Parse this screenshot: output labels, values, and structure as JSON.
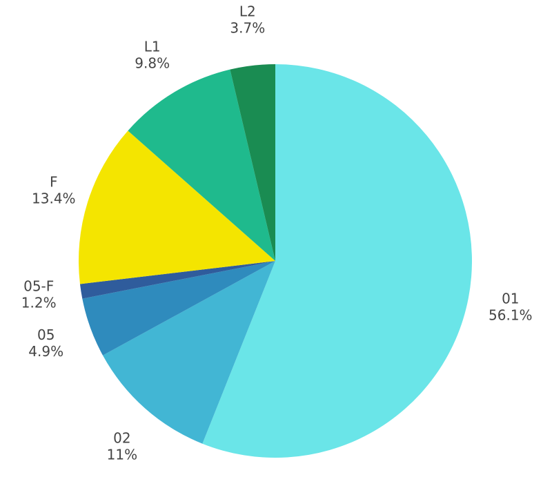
{
  "chart_data": {
    "type": "pie",
    "start_angle_deg": 0,
    "direction": "clockwise",
    "slices": [
      {
        "label": "01",
        "value_text": "56.1%",
        "value": 56.1,
        "color": "#6ae5e8"
      },
      {
        "label": "02",
        "value_text": "11%",
        "value": 11.0,
        "color": "#42b6d4"
      },
      {
        "label": "05",
        "value_text": "4.9%",
        "value": 4.9,
        "color": "#2f8bbd"
      },
      {
        "label": "05-F",
        "value_text": "1.2%",
        "value": 1.2,
        "color": "#2f5c9c"
      },
      {
        "label": "F",
        "value_text": "13.4%",
        "value": 13.4,
        "color": "#f4e500"
      },
      {
        "label": "L1",
        "value_text": "9.8%",
        "value": 9.8,
        "color": "#1fba8d"
      },
      {
        "label": "L2",
        "value_text": "3.7%",
        "value": 3.7,
        "color": "#1a8c52"
      }
    ]
  }
}
